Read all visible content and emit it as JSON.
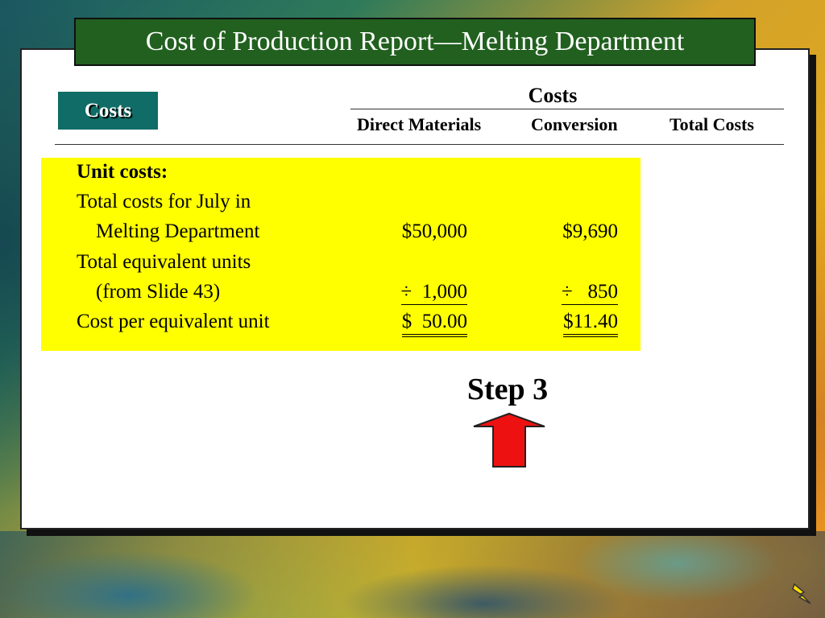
{
  "slide": {
    "title": "Cost of Production Report—Melting Department",
    "section_badge": "Costs"
  },
  "table": {
    "group_header": "Costs",
    "columns": [
      "Direct Materials",
      "Conversion",
      "Total Costs"
    ],
    "rows": [
      {
        "label": "Unit costs:",
        "bold": true,
        "dm": "",
        "conv": ""
      },
      {
        "label": "Total costs for July in",
        "dm": "",
        "conv": ""
      },
      {
        "label": "Melting Department",
        "dm": "$50,000",
        "conv": "$9,690"
      },
      {
        "label": "Total equivalent units",
        "dm": "",
        "conv": ""
      },
      {
        "label": "(from Slide 43)",
        "dm": "÷  1,000",
        "conv": "÷   850"
      },
      {
        "label": "Cost per equivalent unit",
        "dm": "$  50.00",
        "conv": "$11.40"
      }
    ]
  },
  "annotation": {
    "step_label": "Step 3",
    "arrow_color": "#ee1111",
    "highlight_color": "#ffff00",
    "title_bar_color": "#22601f",
    "badge_color": "#0f6c66"
  }
}
